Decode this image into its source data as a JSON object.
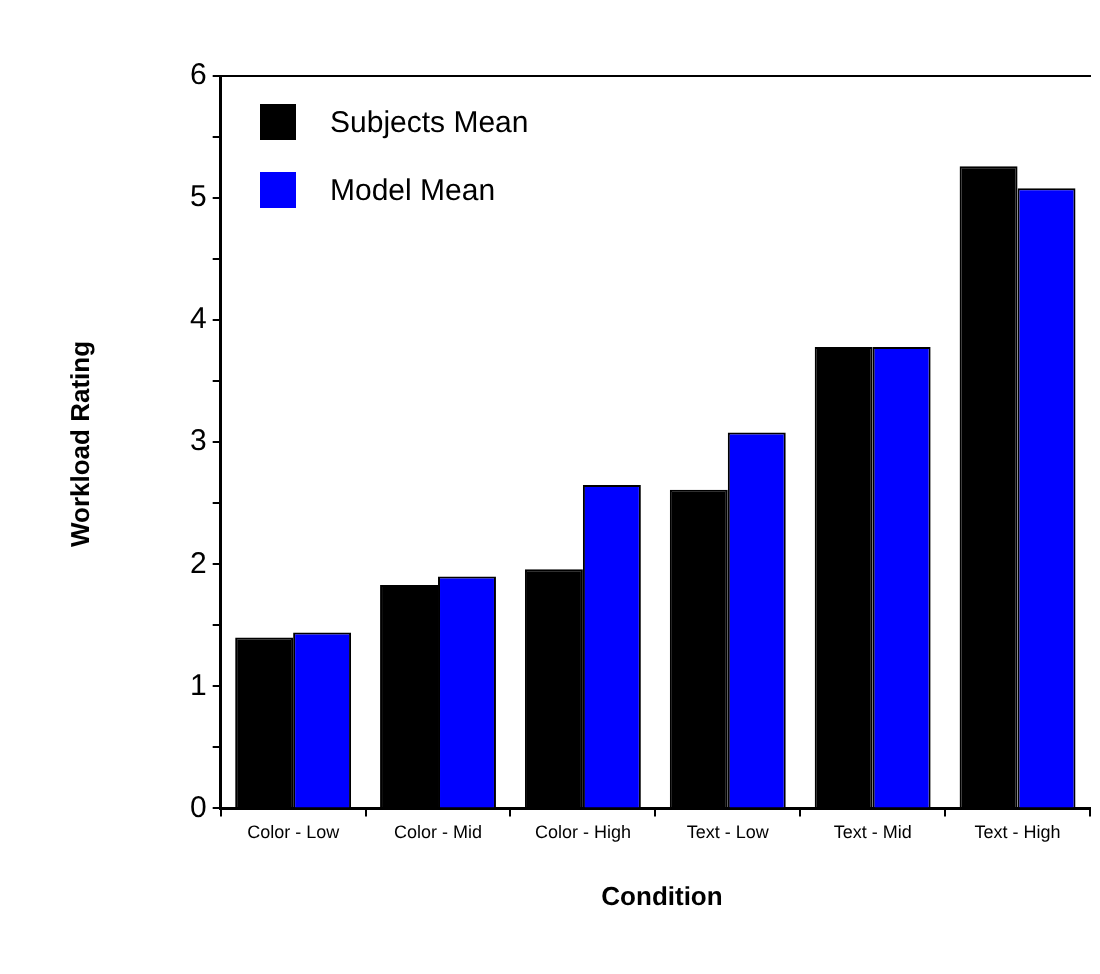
{
  "chart_data": {
    "type": "bar",
    "xlabel": "Condition",
    "ylabel": "Workload Rating",
    "categories": [
      "Color - Low",
      "Color - Mid",
      "Color - High",
      "Text - Low",
      "Text - Mid",
      "Text - High"
    ],
    "series": [
      {
        "name": "Subjects Mean",
        "color": "#000000",
        "values": [
          1.4,
          1.83,
          1.96,
          2.61,
          3.78,
          5.26
        ]
      },
      {
        "name": "Model Mean",
        "color": "#0000ff",
        "values": [
          1.44,
          1.9,
          2.65,
          3.08,
          3.78,
          5.08
        ]
      }
    ],
    "ylim": [
      0,
      6
    ],
    "yticks": [
      0,
      {
        "value": 0.5,
        "label": null
      },
      1,
      {
        "value": 1.5,
        "label": null
      },
      2,
      {
        "value": 2.5,
        "label": null
      },
      3,
      {
        "value": 3.5,
        "label": null
      },
      4,
      {
        "value": 4.5,
        "label": null
      },
      5,
      {
        "value": 5.5,
        "label": null
      },
      6
    ],
    "grid": false,
    "legend": "top left"
  }
}
